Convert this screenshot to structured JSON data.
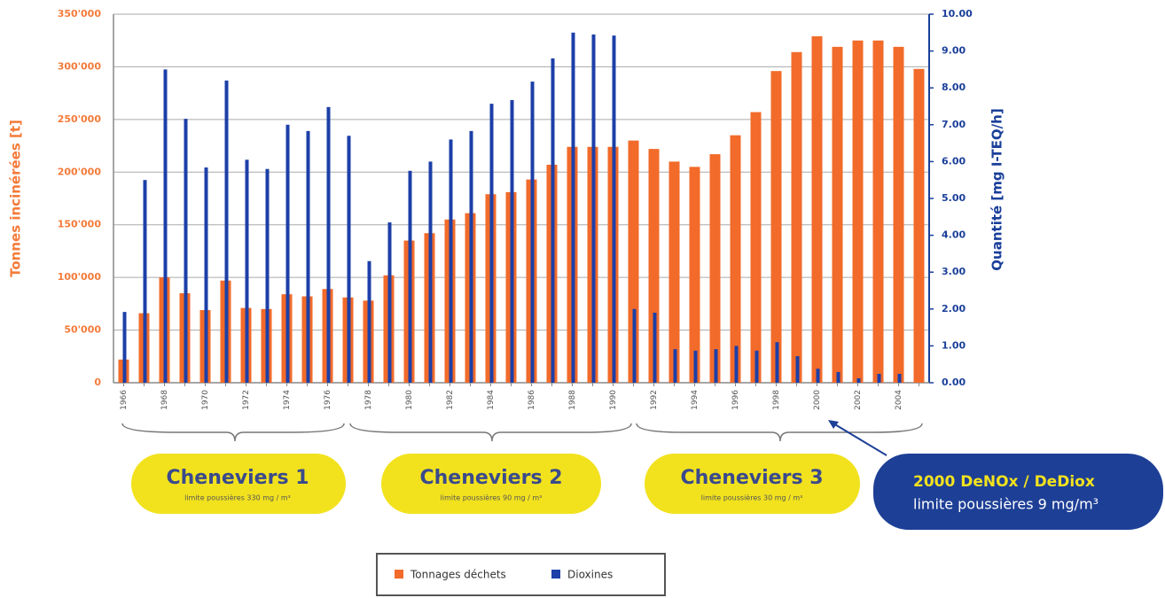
{
  "chart_data": {
    "type": "bar",
    "y_label": "Tonnes incinérées [t]",
    "y2_label": "Quantité [mg I-TEQ/h]",
    "categories": [
      "1966",
      null,
      "1968",
      null,
      "1970",
      null,
      "1972",
      null,
      "1974",
      null,
      "1976",
      null,
      "1978",
      null,
      "1980",
      null,
      "1982",
      null,
      "1984",
      null,
      "1986",
      null,
      "1988",
      null,
      "1990",
      null,
      "1992",
      null,
      "1994",
      null,
      "1996",
      null,
      "1998",
      null,
      "2000",
      null,
      "2002",
      null,
      "2004",
      null
    ],
    "series": [
      {
        "name": "Tonnages déchets",
        "color": "#f26b2a",
        "values": [
          22000,
          66000,
          100000,
          85000,
          69000,
          97000,
          71000,
          70000,
          84000,
          82000,
          89000,
          81000,
          78000,
          102000,
          135000,
          142000,
          155000,
          161000,
          179000,
          181000,
          193000,
          207000,
          224000,
          224000,
          224000,
          230000,
          222000,
          210000,
          205000,
          217000,
          235000,
          257000,
          296000,
          314000,
          329000,
          319000,
          325000,
          325000,
          319000,
          298000
        ]
      },
      {
        "name": "Dioxines",
        "color": "#1c3fa8",
        "axis": "y2",
        "values": [
          1.92,
          5.5,
          8.5,
          7.16,
          5.84,
          8.2,
          6.05,
          5.8,
          7.0,
          6.83,
          7.48,
          6.7,
          3.3,
          4.35,
          5.75,
          6.0,
          6.6,
          6.83,
          7.57,
          7.67,
          8.17,
          8.8,
          9.5,
          9.45,
          9.42,
          2.0,
          1.9,
          0.91,
          0.87,
          0.91,
          1.0,
          0.87,
          1.1,
          0.72,
          0.38,
          0.29,
          0.12,
          0.24,
          0.24,
          null
        ]
      }
    ],
    "ylim": [
      0,
      350000
    ],
    "yticks": [
      0,
      {
        "value": 50000,
        "label": "50'000"
      },
      {
        "value": 100000,
        "label": "100'000"
      },
      {
        "value": 150000,
        "label": "150'000"
      },
      {
        "value": 200000,
        "label": "200'000"
      },
      {
        "value": 250000,
        "label": "250'000"
      },
      {
        "value": 300000,
        "label": "300'000"
      },
      {
        "value": 350000,
        "label": "350'000"
      }
    ],
    "y2lim": [
      0,
      10
    ],
    "y2ticks": [
      {
        "value": 0,
        "label": "0.00"
      },
      {
        "value": 1,
        "label": "1.00"
      },
      {
        "value": 2,
        "label": "2.00"
      },
      {
        "value": 3,
        "label": "3.00"
      },
      {
        "value": 4,
        "label": "4.00"
      },
      {
        "value": 5,
        "label": "5.00"
      },
      {
        "value": 6,
        "label": "6.00"
      },
      {
        "value": 7,
        "label": "7.00"
      },
      {
        "value": 8,
        "label": "8.00"
      },
      {
        "value": 9,
        "label": "9.00"
      },
      {
        "value": 10,
        "label": "10.00"
      }
    ],
    "grid": true,
    "legend": "bottom",
    "annotations": [
      {
        "title": "Cheneviers 1",
        "subtitle": "limite poussières 330 mg / m³"
      },
      {
        "title": "Cheneviers 2",
        "subtitle": "limite poussières 90 mg / m³"
      },
      {
        "title": "Cheneviers 3",
        "subtitle": "limite poussières 30 mg / m³"
      },
      {
        "title": "2000 DeNOx / DeDiox",
        "subtitle": "limite poussières 9 mg/m³"
      }
    ]
  }
}
